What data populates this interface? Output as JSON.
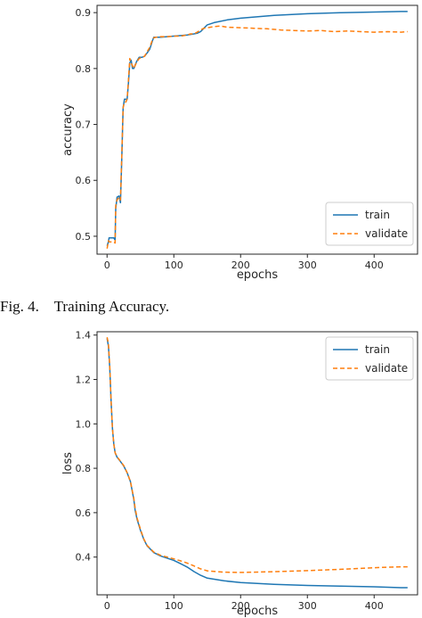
{
  "figure_caption": "Fig. 4.    Training Accuracy.",
  "colors": {
    "train": "#1f77b4",
    "validate": "#ff7f0e",
    "axis": "#262626"
  },
  "chart_data": [
    {
      "type": "line",
      "title": "",
      "xlabel": "epochs",
      "ylabel": "accuracy",
      "xlim": [
        -15,
        465
      ],
      "ylim": [
        0.468,
        0.913
      ],
      "xticks": [
        0,
        100,
        200,
        300,
        400
      ],
      "yticks": [
        0.5,
        0.6,
        0.7,
        0.8,
        0.9
      ],
      "yticklabels": [
        "0.5",
        "0.6",
        "0.7",
        "0.8",
        "0.9"
      ],
      "legend": {
        "placement": "lower-right",
        "entries": [
          "train",
          "validate"
        ]
      },
      "series": [
        {
          "name": "train",
          "style": "solid",
          "x": [
            0,
            2,
            3,
            10,
            12,
            13,
            15,
            18,
            20,
            22,
            24,
            26,
            28,
            30,
            32,
            34,
            36,
            38,
            40,
            44,
            48,
            52,
            56,
            60,
            64,
            68,
            70,
            74,
            80,
            90,
            100,
            110,
            120,
            125,
            130,
            135,
            140,
            145,
            150,
            160,
            180,
            200,
            250,
            300,
            350,
            400,
            440,
            450
          ],
          "y": [
            0.483,
            0.49,
            0.497,
            0.497,
            0.493,
            0.55,
            0.57,
            0.572,
            0.56,
            0.64,
            0.73,
            0.745,
            0.745,
            0.745,
            0.775,
            0.81,
            0.815,
            0.8,
            0.8,
            0.812,
            0.82,
            0.82,
            0.822,
            0.828,
            0.835,
            0.85,
            0.856,
            0.856,
            0.856,
            0.857,
            0.858,
            0.859,
            0.86,
            0.861,
            0.862,
            0.863,
            0.866,
            0.872,
            0.878,
            0.882,
            0.887,
            0.89,
            0.895,
            0.898,
            0.9,
            0.901,
            0.902,
            0.902
          ]
        },
        {
          "name": "validate",
          "style": "dashed",
          "x": [
            0,
            2,
            3,
            10,
            12,
            13,
            15,
            18,
            20,
            22,
            24,
            26,
            28,
            30,
            32,
            34,
            36,
            38,
            40,
            44,
            48,
            52,
            56,
            60,
            64,
            68,
            70,
            74,
            80,
            90,
            100,
            110,
            120,
            125,
            130,
            135,
            140,
            145,
            150,
            160,
            170,
            180,
            200,
            220,
            240,
            260,
            280,
            300,
            320,
            340,
            360,
            380,
            400,
            420,
            440,
            450
          ],
          "y": [
            0.478,
            0.492,
            0.49,
            0.49,
            0.488,
            0.555,
            0.565,
            0.57,
            0.565,
            0.645,
            0.73,
            0.74,
            0.74,
            0.745,
            0.78,
            0.818,
            0.81,
            0.805,
            0.8,
            0.811,
            0.818,
            0.82,
            0.822,
            0.83,
            0.838,
            0.852,
            0.855,
            0.856,
            0.857,
            0.857,
            0.858,
            0.858,
            0.86,
            0.862,
            0.862,
            0.865,
            0.869,
            0.872,
            0.873,
            0.875,
            0.876,
            0.874,
            0.873,
            0.872,
            0.871,
            0.869,
            0.868,
            0.867,
            0.868,
            0.866,
            0.867,
            0.866,
            0.865,
            0.866,
            0.865,
            0.866
          ]
        }
      ]
    },
    {
      "type": "line",
      "title": "",
      "xlabel": "epochs",
      "ylabel": "loss",
      "xlim": [
        -15,
        465
      ],
      "ylim": [
        0.23,
        1.415
      ],
      "xticks": [
        0,
        100,
        200,
        300,
        400
      ],
      "yticks": [
        0.4,
        0.6,
        0.8,
        1.0,
        1.2,
        1.4
      ],
      "yticklabels": [
        "0.4",
        "0.6",
        "0.8",
        "1.0",
        "1.2",
        "1.4"
      ],
      "legend": {
        "placement": "top-right",
        "entries": [
          "train",
          "validate"
        ]
      },
      "series": [
        {
          "name": "train",
          "style": "solid",
          "x": [
            0,
            2,
            4,
            6,
            8,
            10,
            12,
            15,
            20,
            25,
            30,
            35,
            40,
            42,
            45,
            50,
            55,
            60,
            70,
            80,
            90,
            100,
            110,
            120,
            130,
            140,
            150,
            175,
            200,
            250,
            300,
            350,
            400,
            440,
            450
          ],
          "y": [
            1.385,
            1.35,
            1.25,
            1.1,
            0.98,
            0.91,
            0.87,
            0.85,
            0.83,
            0.81,
            0.78,
            0.74,
            0.66,
            0.61,
            0.57,
            0.52,
            0.48,
            0.45,
            0.42,
            0.405,
            0.395,
            0.385,
            0.37,
            0.355,
            0.335,
            0.318,
            0.305,
            0.293,
            0.285,
            0.277,
            0.272,
            0.269,
            0.266,
            0.262,
            0.262
          ]
        },
        {
          "name": "validate",
          "style": "dashed",
          "x": [
            0,
            2,
            4,
            6,
            8,
            10,
            12,
            15,
            20,
            25,
            30,
            35,
            40,
            42,
            45,
            50,
            55,
            60,
            70,
            80,
            90,
            100,
            110,
            120,
            130,
            140,
            150,
            175,
            200,
            250,
            300,
            350,
            400,
            440,
            450
          ],
          "y": [
            1.39,
            1.36,
            1.26,
            1.1,
            0.98,
            0.91,
            0.87,
            0.852,
            0.832,
            0.812,
            0.78,
            0.74,
            0.665,
            0.62,
            0.575,
            0.525,
            0.482,
            0.452,
            0.422,
            0.408,
            0.4,
            0.392,
            0.383,
            0.373,
            0.36,
            0.347,
            0.338,
            0.332,
            0.331,
            0.334,
            0.339,
            0.345,
            0.352,
            0.356,
            0.356
          ]
        }
      ]
    }
  ]
}
